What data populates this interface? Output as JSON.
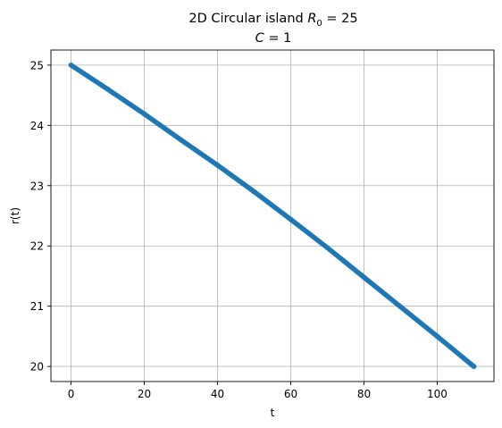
{
  "chart_data": {
    "type": "line",
    "title_parts": {
      "prefix": "2D Circular island ",
      "var_main": "R",
      "var_sub": "0",
      "suffix": " = 25",
      "line2_var": "C",
      "line2_suffix": " = 1"
    },
    "xlabel": "t",
    "ylabel": "r(t)",
    "xlim": [
      -5.5,
      115.5
    ],
    "ylim": [
      19.75,
      25.25
    ],
    "x_ticks": [
      0,
      20,
      40,
      60,
      80,
      100
    ],
    "y_ticks": [
      20,
      21,
      22,
      23,
      24,
      25
    ],
    "grid": true,
    "series": [
      {
        "color": "#1f77b4",
        "style": "thick dense markers",
        "x": [
          0,
          10,
          20,
          30,
          40,
          50,
          60,
          70,
          80,
          90,
          100,
          110
        ],
        "y": [
          25.0,
          24.6,
          24.19,
          23.76,
          23.34,
          22.9,
          22.44,
          21.97,
          21.48,
          20.99,
          20.5,
          20.0
        ]
      }
    ]
  }
}
